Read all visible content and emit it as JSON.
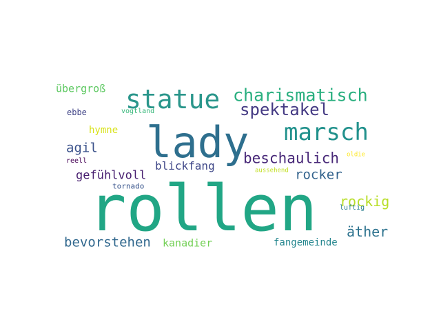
{
  "words": [
    {
      "text": "rollen",
      "color": "#21a685"
    },
    {
      "text": "lady",
      "color": "#2e6f8e"
    },
    {
      "text": "statue",
      "color": "#2a968b"
    },
    {
      "text": "marsch",
      "color": "#21918c"
    },
    {
      "text": "charismatisch",
      "color": "#29af7f"
    },
    {
      "text": "spektakel",
      "color": "#443a83"
    },
    {
      "text": "beschaulich",
      "color": "#482878"
    },
    {
      "text": "bevorstehen",
      "color": "#31688e"
    },
    {
      "text": "rocker",
      "color": "#33638d"
    },
    {
      "text": "rockig",
      "color": "#b8de29"
    },
    {
      "text": "äther",
      "color": "#2c728e"
    },
    {
      "text": "agil",
      "color": "#3b528b"
    },
    {
      "text": "gefühlvoll",
      "color": "#481f70"
    },
    {
      "text": "blickfang",
      "color": "#3f4788"
    },
    {
      "text": "übergroß",
      "color": "#5ec962"
    },
    {
      "text": "hymne",
      "color": "#d8e219"
    },
    {
      "text": "kanadier",
      "color": "#73d055"
    },
    {
      "text": "fangemeinde",
      "color": "#24868e"
    },
    {
      "text": "ebbe",
      "color": "#414487"
    },
    {
      "text": "vogtland",
      "color": "#35b779"
    },
    {
      "text": "reell",
      "color": "#440154"
    },
    {
      "text": "tornado",
      "color": "#39558c"
    },
    {
      "text": "oldie",
      "color": "#fde725"
    },
    {
      "text": "aussehend",
      "color": "#c2df23"
    },
    {
      "text": "luftig",
      "color": "#287d8e"
    }
  ]
}
